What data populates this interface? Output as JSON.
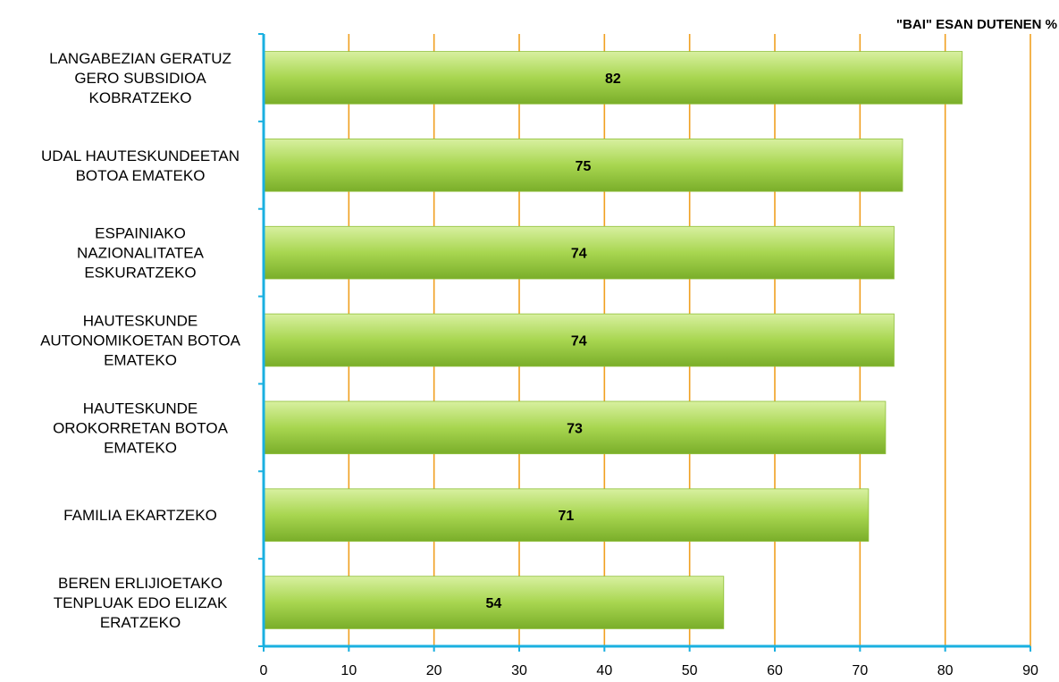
{
  "chart_data": {
    "type": "bar",
    "orientation": "horizontal",
    "title": "",
    "xlabel": "\"BAI\" ESAN DUTENEN %",
    "ylabel": "",
    "xlim": [
      0,
      90
    ],
    "ticks": [
      0,
      10,
      20,
      30,
      40,
      50,
      60,
      70,
      80,
      90
    ],
    "grid": true,
    "categories": [
      "LANGABEZIAN GERATUZ\nGERO SUBSIDIOA\nKOBRATZEKO",
      "UDAL HAUTESKUNDEETAN\nBOTOA EMATEKO",
      "ESPAINIAKO\nNAZIONALITATEA\nESKURATZEKO",
      "HAUTESKUNDE\nAUTONOMIKOETAN BOTOA\nEMATEKO",
      "HAUTESKUNDE\nOROKORRETAN BOTOA\nEMATEKO",
      "FAMILIA EKARTZEKO",
      "BEREN ERLIJIOETAKO\nTENPLUAK EDO ELIZAK\nERATZEKO"
    ],
    "values": [
      82,
      75,
      74,
      74,
      73,
      71,
      54
    ],
    "colors": {
      "bar_light": "#d8f0a0",
      "bar_mid": "#a8d650",
      "bar_dark": "#7aae2a",
      "gridline": "#f0a020",
      "axis": "#1ab0e0"
    }
  }
}
